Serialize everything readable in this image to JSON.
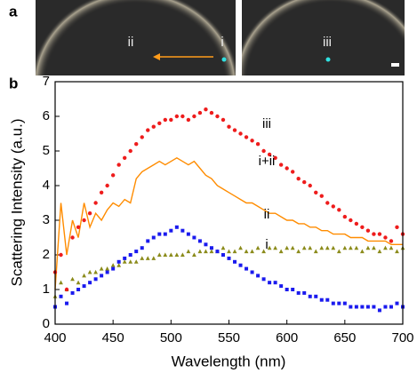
{
  "panel_a": {
    "label": "a",
    "image_labels": [
      "ii",
      "i",
      "iii"
    ]
  },
  "chart_data": {
    "type": "scatter",
    "panel_label": "b",
    "xlabel": "Wavelength (nm)",
    "ylabel": "Scattering Intensity (a.u.)",
    "xlim": [
      400,
      700
    ],
    "ylim": [
      0,
      7
    ],
    "xticks": [
      400,
      450,
      500,
      550,
      600,
      650,
      700
    ],
    "yticks": [
      0,
      1,
      2,
      3,
      4,
      5,
      6,
      7
    ],
    "x": [
      400,
      405,
      410,
      415,
      420,
      425,
      430,
      435,
      440,
      445,
      450,
      455,
      460,
      465,
      470,
      475,
      480,
      485,
      490,
      495,
      500,
      505,
      510,
      515,
      520,
      525,
      530,
      535,
      540,
      545,
      550,
      555,
      560,
      565,
      570,
      575,
      580,
      585,
      590,
      595,
      600,
      605,
      610,
      615,
      620,
      625,
      630,
      635,
      640,
      645,
      650,
      655,
      660,
      665,
      670,
      675,
      680,
      685,
      690,
      695,
      700
    ],
    "series": [
      {
        "name": "iii",
        "color": "#ee1c1c",
        "marker": "circle",
        "values": [
          1.5,
          2.0,
          1.0,
          2.5,
          2.8,
          3.0,
          3.2,
          3.5,
          3.8,
          4.0,
          4.3,
          4.6,
          4.8,
          5.0,
          5.2,
          5.4,
          5.6,
          5.7,
          5.8,
          5.9,
          5.9,
          6.0,
          6.0,
          5.9,
          6.0,
          6.1,
          6.2,
          6.1,
          6.0,
          5.9,
          5.7,
          5.6,
          5.5,
          5.4,
          5.3,
          5.2,
          5.0,
          4.9,
          4.8,
          4.6,
          4.5,
          4.4,
          4.2,
          4.1,
          4.0,
          3.8,
          3.7,
          3.5,
          3.4,
          3.3,
          3.1,
          3.0,
          2.9,
          2.8,
          2.7,
          2.6,
          2.6,
          2.5,
          2.4,
          2.8,
          2.6
        ]
      },
      {
        "name": "i+ii",
        "color": "#ff8c00",
        "marker": "line",
        "values": [
          1.0,
          3.5,
          2.0,
          3.0,
          2.5,
          3.5,
          2.8,
          3.2,
          3.0,
          3.3,
          3.5,
          3.4,
          3.6,
          3.5,
          4.2,
          4.4,
          4.5,
          4.6,
          4.7,
          4.6,
          4.7,
          4.8,
          4.7,
          4.6,
          4.7,
          4.5,
          4.3,
          4.2,
          4.0,
          3.9,
          3.8,
          3.7,
          3.6,
          3.5,
          3.5,
          3.4,
          3.3,
          3.2,
          3.2,
          3.1,
          3.0,
          3.0,
          2.9,
          2.9,
          2.8,
          2.8,
          2.7,
          2.7,
          2.6,
          2.6,
          2.6,
          2.5,
          2.5,
          2.5,
          2.4,
          2.4,
          2.4,
          2.4,
          2.3,
          2.3,
          2.3
        ]
      },
      {
        "name": "ii",
        "color": "#8b8b1a",
        "marker": "triangle",
        "values": [
          0.8,
          1.2,
          1.0,
          1.3,
          1.2,
          1.4,
          1.5,
          1.5,
          1.6,
          1.6,
          1.7,
          1.7,
          1.8,
          1.8,
          1.8,
          1.9,
          1.9,
          1.9,
          2.0,
          2.0,
          2.0,
          2.0,
          2.0,
          2.1,
          2.0,
          2.1,
          2.1,
          2.1,
          2.1,
          2.2,
          2.1,
          2.1,
          2.2,
          2.1,
          2.1,
          2.2,
          2.1,
          2.2,
          2.2,
          2.1,
          2.2,
          2.2,
          2.1,
          2.2,
          2.2,
          2.1,
          2.2,
          2.2,
          2.2,
          2.1,
          2.2,
          2.2,
          2.2,
          2.1,
          2.2,
          2.2,
          2.1,
          2.2,
          2.2,
          2.1,
          2.2
        ]
      },
      {
        "name": "i",
        "color": "#1a1aee",
        "marker": "square",
        "values": [
          0.5,
          0.8,
          0.6,
          0.9,
          1.0,
          1.1,
          1.2,
          1.3,
          1.4,
          1.5,
          1.6,
          1.8,
          1.9,
          2.0,
          2.1,
          2.2,
          2.4,
          2.5,
          2.6,
          2.6,
          2.7,
          2.8,
          2.7,
          2.6,
          2.5,
          2.4,
          2.3,
          2.2,
          2.1,
          2.0,
          1.9,
          1.8,
          1.7,
          1.6,
          1.5,
          1.4,
          1.3,
          1.2,
          1.2,
          1.1,
          1.0,
          1.0,
          0.9,
          0.9,
          0.8,
          0.8,
          0.7,
          0.7,
          0.6,
          0.6,
          0.6,
          0.5,
          0.5,
          0.5,
          0.5,
          0.5,
          0.4,
          0.5,
          0.5,
          0.6,
          0.5
        ]
      }
    ]
  }
}
